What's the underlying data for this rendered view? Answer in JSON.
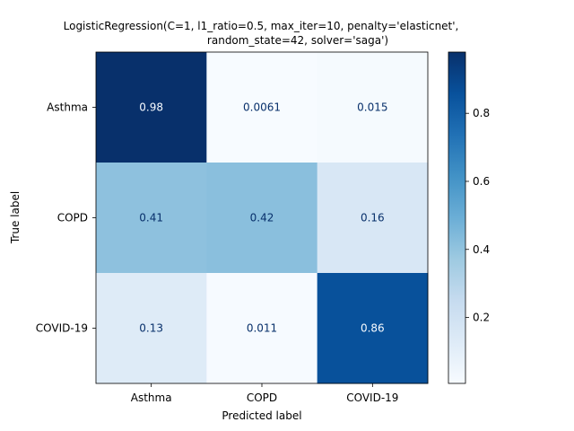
{
  "chart_data": {
    "type": "heatmap",
    "title_lines": [
      "LogisticRegression(C=1, l1_ratio=0.5, max_iter=10, penalty='elasticnet',",
      "random_state=42, solver='saga')"
    ],
    "xlabel": "Predicted label",
    "ylabel": "True label",
    "x_categories": [
      "Asthma",
      "COPD",
      "COVID-19"
    ],
    "y_categories": [
      "Asthma",
      "COPD",
      "COVID-19"
    ],
    "values": [
      [
        0.98,
        0.0061,
        0.015
      ],
      [
        0.41,
        0.42,
        0.16
      ],
      [
        0.13,
        0.011,
        0.86
      ]
    ],
    "value_labels": [
      [
        "0.98",
        "0.0061",
        "0.015"
      ],
      [
        "0.41",
        "0.42",
        "0.16"
      ],
      [
        "0.13",
        "0.011",
        "0.86"
      ]
    ],
    "colormap": "Blues",
    "vmin": 0.0061,
    "vmax": 0.98,
    "colorbar": {
      "ticks": [
        0.2,
        0.4,
        0.6,
        0.8
      ],
      "tick_labels": [
        "0.2",
        "0.4",
        "0.6",
        "0.8"
      ]
    },
    "grid": false
  }
}
